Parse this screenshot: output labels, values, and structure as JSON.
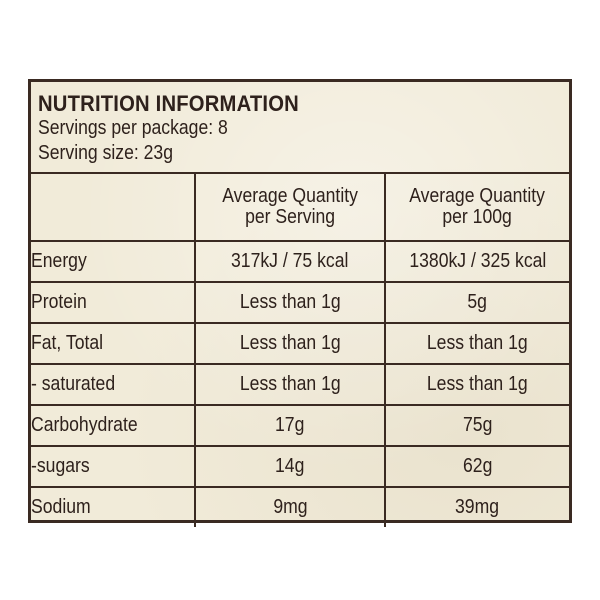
{
  "panel": {
    "title": "NUTRITION INFORMATION",
    "servings_per_package": "Servings per package: 8",
    "serving_size": "Serving size: 23g"
  },
  "columns": {
    "serving_line1": "Average Quantity",
    "serving_line2": "per Serving",
    "per100g_line1": "Average Quantity",
    "per100g_line2": "per 100g"
  },
  "rows": [
    {
      "nutrient": "Energy",
      "per_serving": "317kJ / 75 kcal",
      "per_100g": "1380kJ / 325 kcal"
    },
    {
      "nutrient": "Protein",
      "per_serving": "Less than 1g",
      "per_100g": "5g"
    },
    {
      "nutrient": "Fat, Total",
      "per_serving": "Less than 1g",
      "per_100g": "Less than 1g"
    },
    {
      "nutrient": "- saturated",
      "per_serving": "Less than 1g",
      "per_100g": "Less than 1g"
    },
    {
      "nutrient": "Carbohydrate",
      "per_serving": "17g",
      "per_100g": "75g"
    },
    {
      "nutrient": "-sugars",
      "per_serving": "14g",
      "per_100g": "62g"
    },
    {
      "nutrient": "Sodium",
      "per_serving": "9mg",
      "per_100g": "39mg"
    }
  ],
  "colors": {
    "border": "#3a2a22",
    "background": "#f1ebd9",
    "text": "#2e211c"
  }
}
